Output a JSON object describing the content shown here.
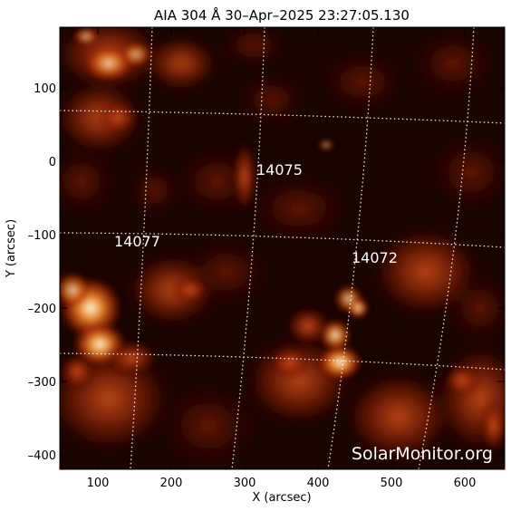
{
  "title": "AIA 304 Å 30–Apr–2025 23:27:05.130",
  "x_axis": {
    "label": "X (arcsec)",
    "ticks": [
      "100",
      "200",
      "300",
      "400",
      "500",
      "600"
    ]
  },
  "y_axis": {
    "label": "Y (arcsec)",
    "ticks": [
      "100",
      "0",
      "–100",
      "–200",
      "–300",
      "–400"
    ]
  },
  "regions": [
    {
      "id": "14075"
    },
    {
      "id": "14077"
    },
    {
      "id": "14072"
    }
  ],
  "watermark": "SolarMonitor.org",
  "colors": {
    "background_dark": "#1a0400",
    "plasma_mid": "#8a1e05",
    "plasma_bright": "#e05a12",
    "plasma_hot": "#fff2d0",
    "grid": "#ffffff"
  }
}
